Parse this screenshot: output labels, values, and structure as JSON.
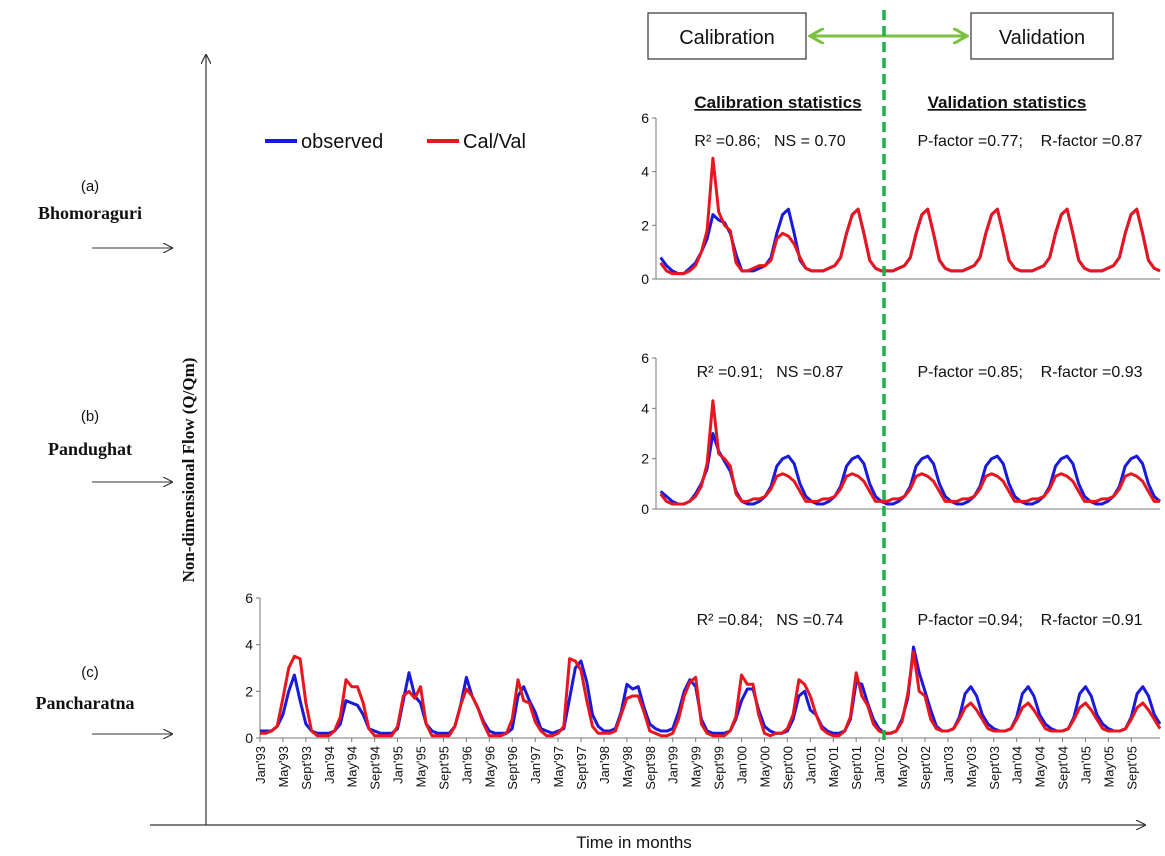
{
  "figure": {
    "y_axis_label": "Non-dimensional Flow (Q/Qm)",
    "x_axis_label": "Time in months",
    "calibration_label": "Calibration",
    "validation_label": "Validation",
    "calibration_stats_header": "Calibration statistics",
    "validation_stats_header": "Validation statistics",
    "legend": {
      "observed": "observed",
      "calval": "Cal/Val"
    },
    "colors": {
      "observed": "#1a1adc",
      "calval": "#e8161e",
      "arrow": "#7cc242",
      "split_line": "#1db24a"
    }
  },
  "chart_data": [
    {
      "type": "line",
      "panel_letter": "(a)",
      "station": "Bhomoraguri",
      "ylim": [
        0,
        6
      ],
      "yticks": [
        0,
        2,
        4,
        6
      ],
      "x_start": "Jan'93",
      "x_end": "Dec'05",
      "calibration_stats": "R² =0.86;   NS = 0.70",
      "validation_stats": "P-factor =0.77;    R-factor =0.87",
      "series": [
        {
          "name": "observed",
          "values": [
            0.2,
            0.2,
            0.2,
            0.3,
            0.5,
            1.5,
            2.1,
            1.8,
            2.3,
            1.5,
            0.6,
            0.3,
            0.2,
            0.2,
            0.2,
            0.4,
            0.7,
            1.8,
            2.0,
            2.2,
            2.6,
            1.1,
            0.6,
            0.3,
            0.2,
            0.2,
            0.4,
            0.4,
            0.7,
            1.8,
            2.0,
            2.2,
            2.6,
            1.1,
            0.6,
            0.3,
            0.2,
            0.2,
            0.4,
            0.5,
            1.1,
            1.3,
            1.7,
            2.2,
            2.2,
            1.7,
            0.7,
            0.4,
            0.3,
            0.3,
            0.4,
            0.5,
            1.1,
            1.7,
            2.3,
            1.6,
            1.2,
            0.9,
            0.6,
            0.4,
            0.3,
            0.3,
            0.4,
            0.5,
            1.3,
            1.7,
            1.5,
            1.5,
            1.3,
            0.8,
            0.5,
            0.3,
            0.2,
            0.2,
            0.4,
            0.6,
            1.0,
            1.5,
            2.4,
            2.2,
            2.1,
            1.7,
            0.9,
            0.3,
            0.3,
            0.3,
            0.4,
            0.5,
            0.8,
            1.7,
            2.4,
            2.6,
            1.7,
            0.7,
            0.4,
            0.3,
            0.3,
            0.3,
            0.4,
            0.5,
            0.8,
            1.7,
            2.4,
            2.6,
            1.7,
            0.7,
            0.4,
            0.3,
            0.3,
            0.3,
            0.4,
            0.5,
            0.8,
            1.7,
            2.4,
            2.6,
            1.7,
            0.7,
            0.4,
            0.3,
            0.3,
            0.3,
            0.4,
            0.5,
            0.8,
            1.7,
            2.4,
            2.6,
            1.7,
            0.7,
            0.4,
            0.3,
            0.3,
            0.3,
            0.4,
            0.5,
            0.8,
            1.7,
            2.4,
            2.6,
            1.7,
            0.7,
            0.4,
            0.3,
            0.3,
            0.3,
            0.4,
            0.5,
            0.8,
            1.7,
            2.4,
            2.6,
            1.7,
            0.7,
            0.4,
            0.3
          ]
        },
        {
          "name": "Cal/Val",
          "values": [
            0.1,
            0.1,
            0.1,
            0.2,
            0.5,
            1.5,
            1.7,
            1.8,
            1.9,
            1.6,
            0.4,
            0.1,
            0.1,
            0.1,
            0.1,
            0.2,
            0.6,
            1.8,
            2.0,
            2.3,
            2.6,
            1.2,
            0.3,
            0.1,
            0.1,
            0.1,
            0.1,
            0.2,
            0.6,
            2.3,
            2.1,
            2.6,
            2.5,
            1.0,
            0.3,
            0.1,
            0.1,
            0.1,
            0.1,
            0.2,
            0.7,
            1.9,
            2.6,
            2.8,
            2.4,
            2.2,
            0.5,
            0.1,
            0.2,
            0.2,
            0.3,
            0.7,
            1.6,
            2.6,
            2.8,
            2.2,
            1.3,
            0.7,
            0.4,
            0.2,
            0.2,
            0.2,
            0.2,
            0.6,
            1.8,
            3.4,
            2.2,
            1.8,
            1.2,
            0.6,
            0.3,
            0.2,
            0.2,
            0.2,
            0.3,
            0.5,
            1.0,
            1.8,
            4.5,
            2.5,
            2.0,
            1.8,
            0.6,
            0.3,
            0.3,
            0.4,
            0.5,
            0.5,
            0.7,
            1.5,
            1.7,
            1.6,
            1.3,
            0.8,
            0.4,
            0.3,
            0.3,
            0.3,
            0.4,
            0.5,
            0.8,
            1.7,
            2.4,
            2.6,
            1.7,
            0.7,
            0.4,
            0.3,
            0.3,
            0.3,
            0.4,
            0.5,
            0.8,
            1.7,
            2.4,
            2.6,
            1.7,
            0.7,
            0.4,
            0.3,
            0.3,
            0.3,
            0.4,
            0.5,
            0.8,
            1.7,
            2.4,
            2.6,
            1.7,
            0.7,
            0.4,
            0.3,
            0.3,
            0.3,
            0.4,
            0.5,
            0.8,
            1.7,
            2.4,
            2.6,
            1.7,
            0.7,
            0.4,
            0.3,
            0.3,
            0.3,
            0.4,
            0.5,
            0.8,
            1.7,
            2.4,
            2.6,
            1.7,
            0.7,
            0.4,
            0.3
          ]
        }
      ]
    },
    {
      "type": "line",
      "panel_letter": "(b)",
      "station": "Pandughat",
      "ylim": [
        0,
        6
      ],
      "yticks": [
        0,
        2,
        4,
        6
      ],
      "x_start": "Jan'93",
      "x_end": "Dec'05",
      "calibration_stats": "R² =0.91;   NS =0.87",
      "validation_stats": "P-factor =0.85;    R-factor =0.93",
      "series": [
        {
          "name": "observed",
          "values": [
            0.2,
            0.2,
            0.2,
            0.3,
            0.5,
            1.5,
            2.1,
            1.9,
            2.0,
            1.6,
            0.5,
            0.3,
            0.2,
            0.2,
            0.2,
            0.3,
            0.6,
            1.6,
            2.2,
            2.3,
            2.3,
            1.0,
            0.4,
            0.2,
            0.2,
            0.2,
            0.3,
            0.4,
            0.6,
            1.6,
            2.0,
            2.2,
            2.2,
            1.1,
            0.5,
            0.3,
            0.2,
            0.2,
            0.3,
            0.4,
            0.7,
            1.5,
            1.8,
            2.2,
            2.2,
            1.6,
            0.5,
            0.3,
            0.2,
            0.2,
            0.3,
            0.6,
            1.2,
            2.1,
            2.1,
            1.3,
            1.2,
            0.7,
            0.4,
            0.3,
            0.2,
            0.2,
            0.3,
            0.6,
            1.2,
            2.4,
            2.1,
            2.1,
            1.5,
            0.7,
            0.5,
            0.3,
            0.2,
            0.2,
            0.3,
            0.6,
            1.0,
            1.6,
            3.0,
            2.3,
            1.9,
            1.5,
            0.7,
            0.3,
            0.2,
            0.2,
            0.3,
            0.5,
            0.9,
            1.7,
            2.0,
            2.1,
            1.8,
            1.0,
            0.5,
            0.3,
            0.2,
            0.2,
            0.3,
            0.5,
            0.9,
            1.7,
            2.0,
            2.1,
            1.8,
            1.0,
            0.5,
            0.3,
            0.2,
            0.2,
            0.3,
            0.5,
            0.9,
            1.7,
            2.0,
            2.1,
            1.8,
            1.0,
            0.5,
            0.3,
            0.2,
            0.2,
            0.3,
            0.5,
            0.9,
            1.7,
            2.0,
            2.1,
            1.8,
            1.0,
            0.5,
            0.3,
            0.2,
            0.2,
            0.3,
            0.5,
            0.9,
            1.7,
            2.0,
            2.1,
            1.8,
            1.0,
            0.5,
            0.3,
            0.2,
            0.2,
            0.3,
            0.5,
            0.9,
            1.7,
            2.0,
            2.1,
            1.8,
            1.0,
            0.5,
            0.3
          ]
        },
        {
          "name": "Cal/Val",
          "values": [
            0.1,
            0.1,
            0.1,
            0.2,
            0.4,
            1.4,
            1.7,
            1.8,
            1.9,
            1.5,
            0.3,
            0.1,
            0.1,
            0.1,
            0.1,
            0.2,
            0.6,
            1.9,
            2.0,
            2.5,
            2.2,
            0.9,
            0.3,
            0.1,
            0.1,
            0.1,
            0.1,
            0.2,
            0.6,
            1.9,
            2.0,
            2.5,
            2.2,
            0.9,
            0.2,
            0.1,
            0.1,
            0.1,
            0.1,
            0.2,
            0.7,
            2.0,
            2.7,
            2.3,
            2.3,
            2.0,
            0.4,
            0.1,
            0.2,
            0.2,
            0.3,
            0.7,
            1.5,
            2.6,
            2.5,
            2.1,
            1.2,
            0.6,
            0.4,
            0.2,
            0.2,
            0.2,
            0.2,
            0.6,
            1.7,
            3.1,
            2.3,
            1.9,
            1.2,
            0.6,
            0.3,
            0.2,
            0.2,
            0.2,
            0.3,
            0.5,
            0.9,
            1.8,
            4.3,
            2.2,
            2.0,
            1.7,
            0.6,
            0.3,
            0.3,
            0.4,
            0.4,
            0.5,
            0.8,
            1.3,
            1.4,
            1.3,
            1.1,
            0.7,
            0.3,
            0.3,
            0.3,
            0.4,
            0.4,
            0.5,
            0.8,
            1.3,
            1.4,
            1.3,
            1.1,
            0.7,
            0.3,
            0.3,
            0.3,
            0.4,
            0.4,
            0.5,
            0.8,
            1.3,
            1.4,
            1.3,
            1.1,
            0.7,
            0.3,
            0.3,
            0.3,
            0.4,
            0.4,
            0.5,
            0.8,
            1.3,
            1.4,
            1.3,
            1.1,
            0.7,
            0.3,
            0.3,
            0.3,
            0.4,
            0.4,
            0.5,
            0.8,
            1.3,
            1.4,
            1.3,
            1.1,
            0.7,
            0.3,
            0.3,
            0.3,
            0.4,
            0.4,
            0.5,
            0.8,
            1.3,
            1.4,
            1.3,
            1.1,
            0.7,
            0.3,
            0.3
          ]
        }
      ]
    },
    {
      "type": "line",
      "panel_letter": "(c)",
      "station": "Pancharatna",
      "ylim": [
        0,
        6
      ],
      "yticks": [
        0,
        2,
        4,
        6
      ],
      "x_start": "Jan'93",
      "x_end": "Dec'05",
      "calibration_stats": "R² =0.84;   NS =0.74",
      "validation_stats": "P-factor =0.94;    R-factor =0.91",
      "x_tick_labels": [
        "Jan'93",
        "May'93",
        "Sept'93",
        "Jan'94",
        "May'94",
        "Sept'94",
        "Jan'95",
        "May'95",
        "Sept'95",
        "Jan'96",
        "May'96",
        "Sept'96",
        "Jan'97",
        "May'97",
        "Sept'97",
        "Jan'98",
        "May'98",
        "Sept'98",
        "Jan'99",
        "May'99",
        "Sept'99",
        "Jan'00",
        "May'00",
        "Sept'00",
        "Jan'01",
        "May'01",
        "Sept'01",
        "Jan'02",
        "May'02",
        "Sept'02",
        "Jan'03",
        "May'03",
        "Sept'03",
        "Jan'04",
        "May'04",
        "Sept'04",
        "Jan'05",
        "May'05",
        "Sept'05"
      ],
      "series": [
        {
          "name": "observed",
          "values": [
            0.3,
            0.3,
            0.3,
            0.5,
            1.0,
            2.0,
            2.7,
            1.6,
            0.6,
            0.3,
            0.2,
            0.2,
            0.2,
            0.3,
            0.6,
            1.6,
            1.5,
            1.4,
            1.0,
            0.4,
            0.3,
            0.2,
            0.2,
            0.2,
            0.4,
            1.6,
            2.8,
            1.8,
            1.5,
            0.6,
            0.3,
            0.2,
            0.2,
            0.2,
            0.5,
            1.4,
            2.6,
            1.8,
            1.3,
            0.7,
            0.3,
            0.2,
            0.2,
            0.2,
            0.4,
            1.8,
            2.2,
            1.6,
            1.1,
            0.4,
            0.3,
            0.2,
            0.3,
            0.4,
            1.7,
            3.0,
            3.3,
            2.4,
            1.0,
            0.5,
            0.3,
            0.3,
            0.4,
            1.1,
            2.3,
            2.1,
            2.2,
            1.3,
            0.6,
            0.4,
            0.3,
            0.3,
            0.4,
            1.1,
            2.0,
            2.5,
            2.2,
            0.8,
            0.3,
            0.2,
            0.2,
            0.2,
            0.3,
            0.8,
            1.6,
            2.1,
            2.1,
            1.2,
            0.5,
            0.3,
            0.2,
            0.2,
            0.3,
            0.8,
            1.8,
            2.0,
            1.2,
            1.0,
            0.5,
            0.3,
            0.2,
            0.2,
            0.3,
            0.8,
            2.4,
            2.3,
            1.5,
            0.8,
            0.4,
            0.2,
            0.2,
            0.3,
            0.8,
            1.7,
            3.9,
            2.8,
            2.0,
            1.2,
            0.5,
            0.3,
            0.3,
            0.4,
            0.9,
            1.9,
            2.2,
            1.8,
            1.0,
            0.6,
            0.4,
            0.3,
            0.3,
            0.4,
            0.9,
            1.9,
            2.2,
            1.8,
            1.0,
            0.6,
            0.4,
            0.3,
            0.3,
            0.4,
            0.9,
            1.9,
            2.2,
            1.8,
            1.0,
            0.6,
            0.4,
            0.3,
            0.3,
            0.4,
            0.9,
            1.9,
            2.2,
            1.8,
            1.0,
            0.6
          ]
        },
        {
          "name": "Cal/Val",
          "values": [
            0.2,
            0.2,
            0.3,
            0.5,
            1.7,
            3.0,
            3.5,
            3.4,
            1.5,
            0.3,
            0.1,
            0.1,
            0.1,
            0.3,
            0.9,
            2.5,
            2.2,
            2.2,
            1.5,
            0.4,
            0.1,
            0.1,
            0.1,
            0.1,
            0.5,
            1.8,
            2.0,
            1.7,
            2.2,
            0.6,
            0.1,
            0.1,
            0.1,
            0.1,
            0.5,
            1.4,
            2.1,
            1.8,
            1.3,
            0.6,
            0.1,
            0.1,
            0.1,
            0.2,
            0.8,
            2.5,
            1.6,
            1.5,
            0.7,
            0.3,
            0.1,
            0.1,
            0.2,
            0.5,
            3.4,
            3.3,
            2.9,
            1.6,
            0.5,
            0.2,
            0.2,
            0.2,
            0.3,
            1.0,
            1.7,
            1.8,
            1.8,
            1.1,
            0.3,
            0.2,
            0.1,
            0.1,
            0.2,
            0.8,
            1.8,
            2.4,
            2.6,
            0.6,
            0.2,
            0.1,
            0.1,
            0.1,
            0.3,
            0.9,
            2.7,
            2.3,
            2.3,
            1.0,
            0.2,
            0.1,
            0.2,
            0.2,
            0.4,
            1.0,
            2.5,
            2.3,
            1.8,
            1.0,
            0.4,
            0.2,
            0.1,
            0.1,
            0.3,
            0.9,
            2.8,
            1.8,
            1.4,
            0.6,
            0.3,
            0.2,
            0.2,
            0.3,
            0.7,
            1.9,
            3.7,
            2.0,
            1.8,
            0.8,
            0.4,
            0.3,
            0.3,
            0.4,
            0.8,
            1.3,
            1.5,
            1.2,
            0.8,
            0.4,
            0.3,
            0.3,
            0.3,
            0.4,
            0.8,
            1.3,
            1.5,
            1.2,
            0.8,
            0.4,
            0.3,
            0.3,
            0.3,
            0.4,
            0.8,
            1.3,
            1.5,
            1.2,
            0.8,
            0.4,
            0.3,
            0.3,
            0.3,
            0.4,
            0.8,
            1.3,
            1.5,
            1.2,
            0.8,
            0.4
          ]
        }
      ]
    }
  ]
}
